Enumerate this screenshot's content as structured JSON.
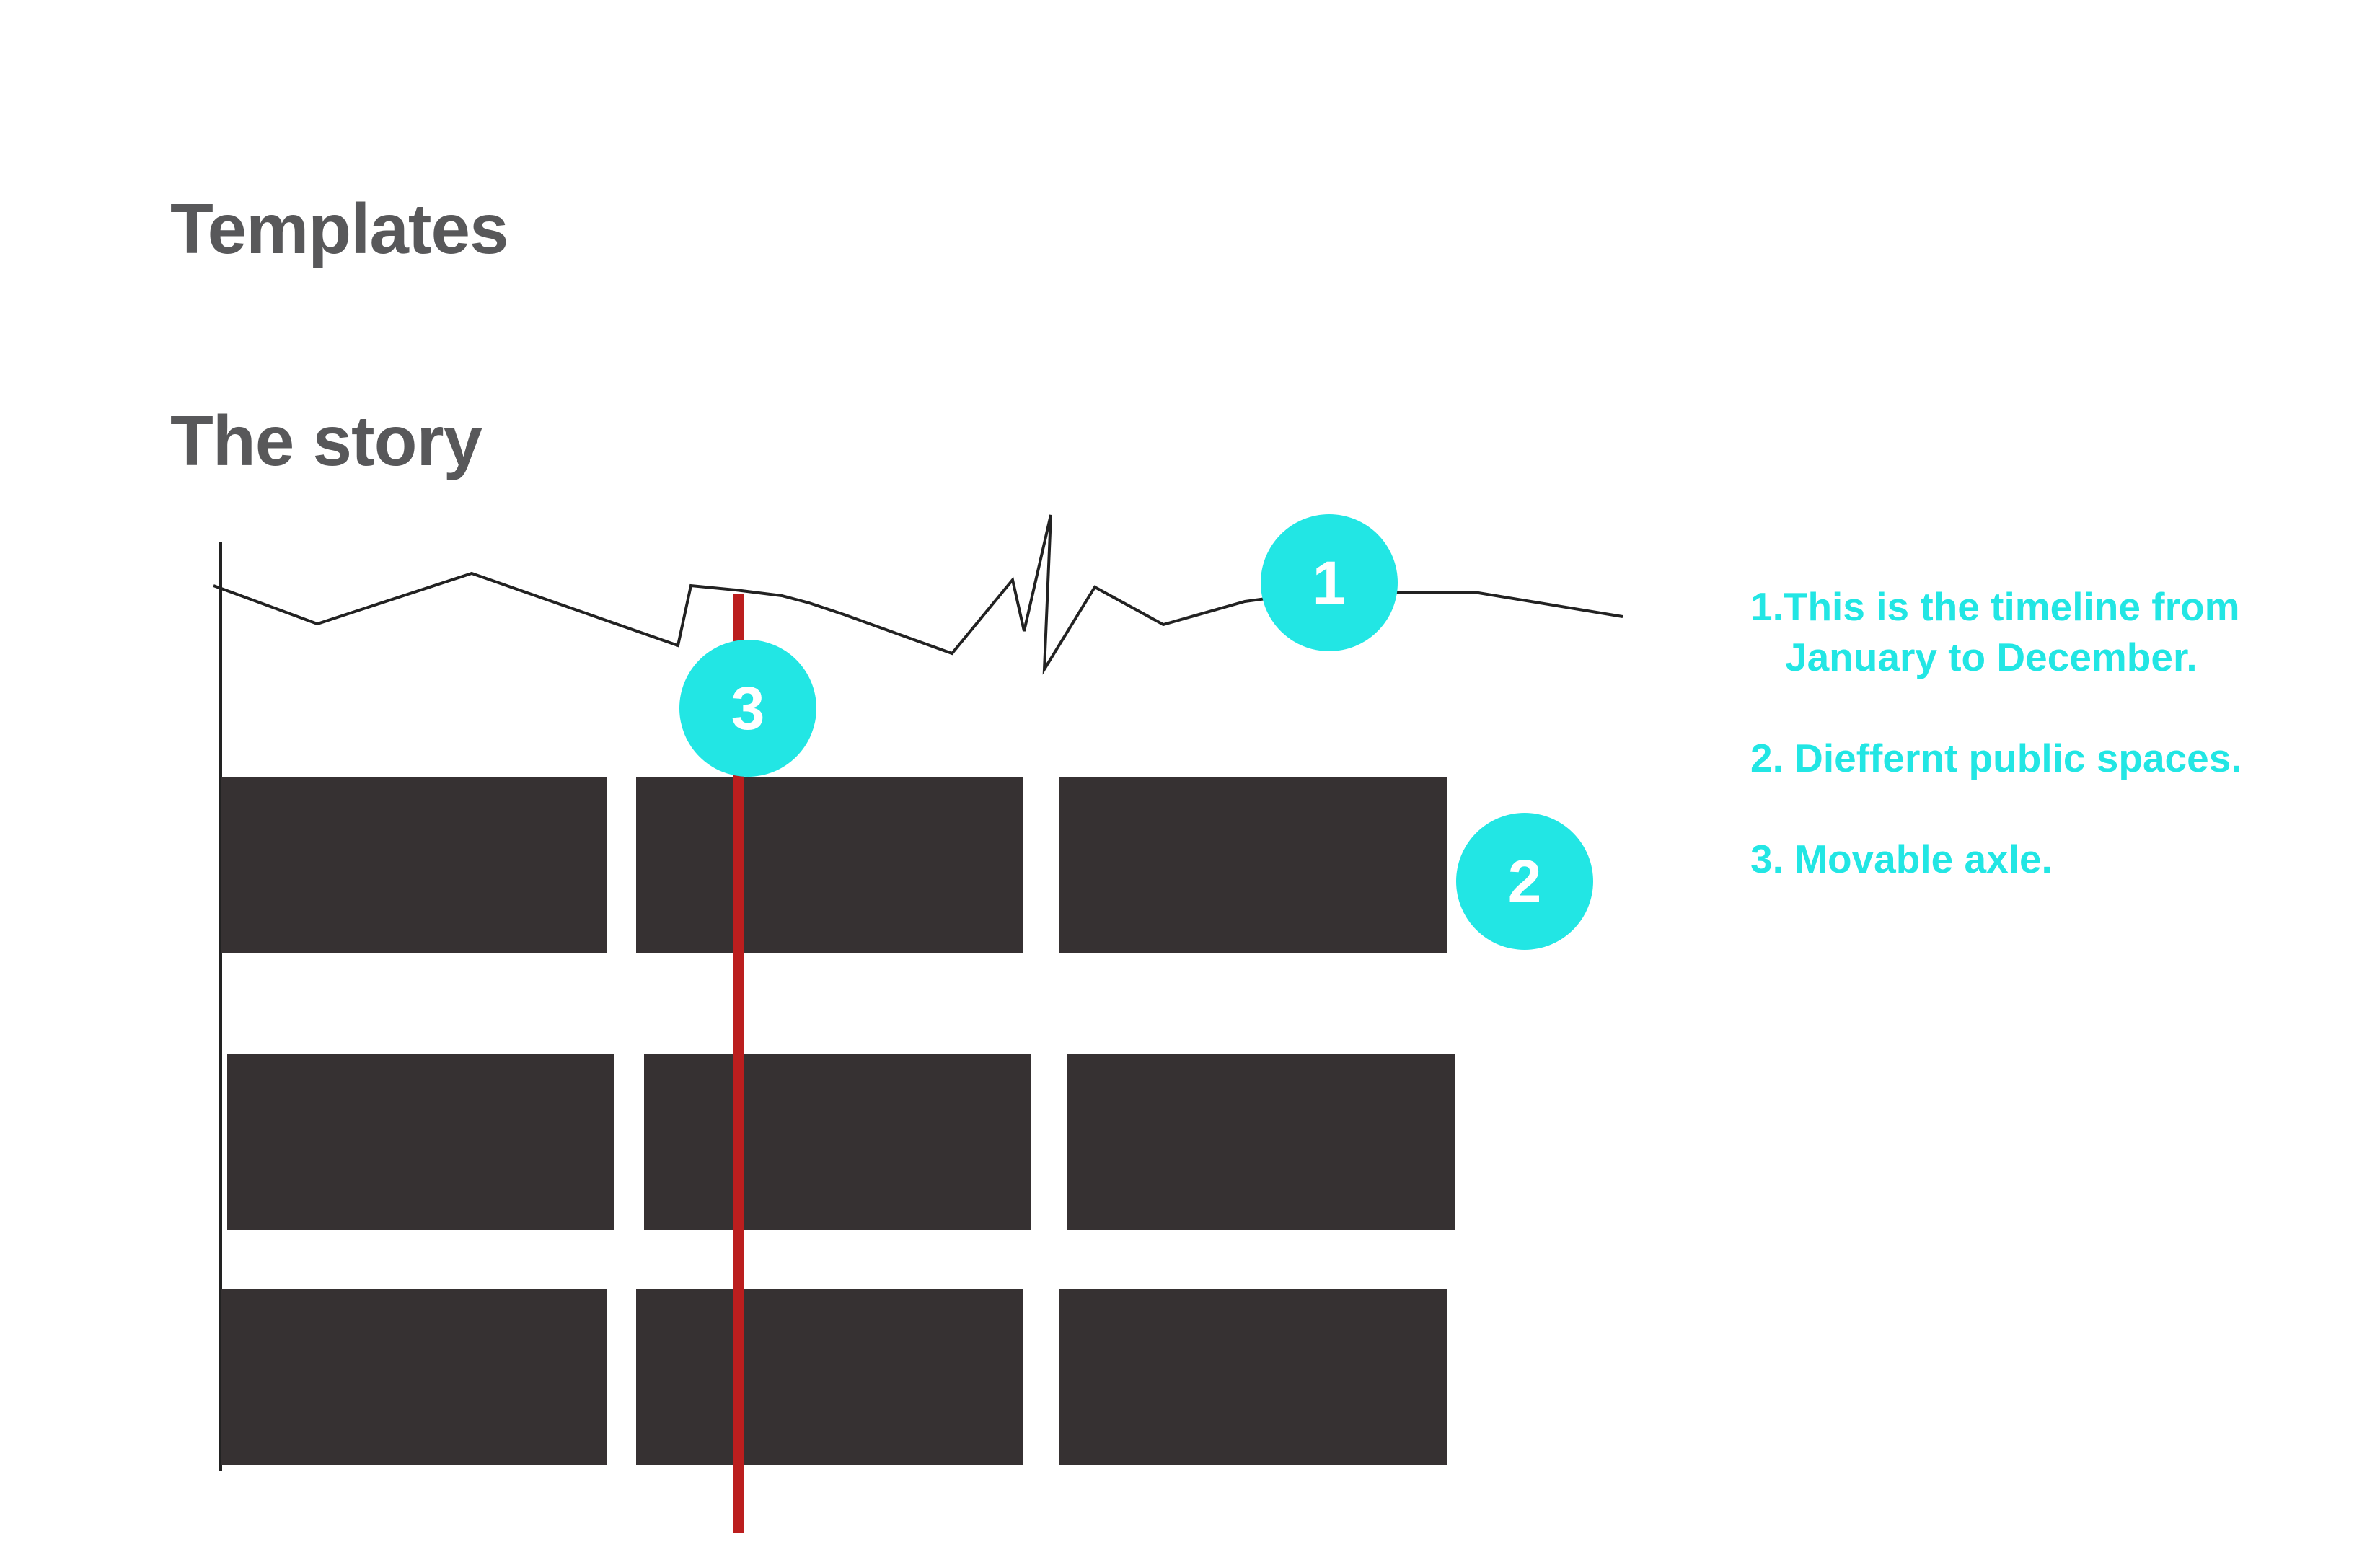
{
  "header": {
    "title": "Templates",
    "subtitle": "The story"
  },
  "colors": {
    "accent": "#22e6e4",
    "block": "#363132",
    "axle": "#bb1e1e",
    "timeline": "#222222",
    "heading": "#58585a"
  },
  "markers": {
    "timeline": "1",
    "spaces": "2",
    "axle": "3"
  },
  "legend": {
    "item1_line1": "1.This is the timeline from",
    "item1_line2": "January to December.",
    "item2": "2. Dieffernt public spaces.",
    "item3": "3. Movable axle."
  },
  "diagram": {
    "block_rows": 3,
    "blocks_per_row": 3
  }
}
